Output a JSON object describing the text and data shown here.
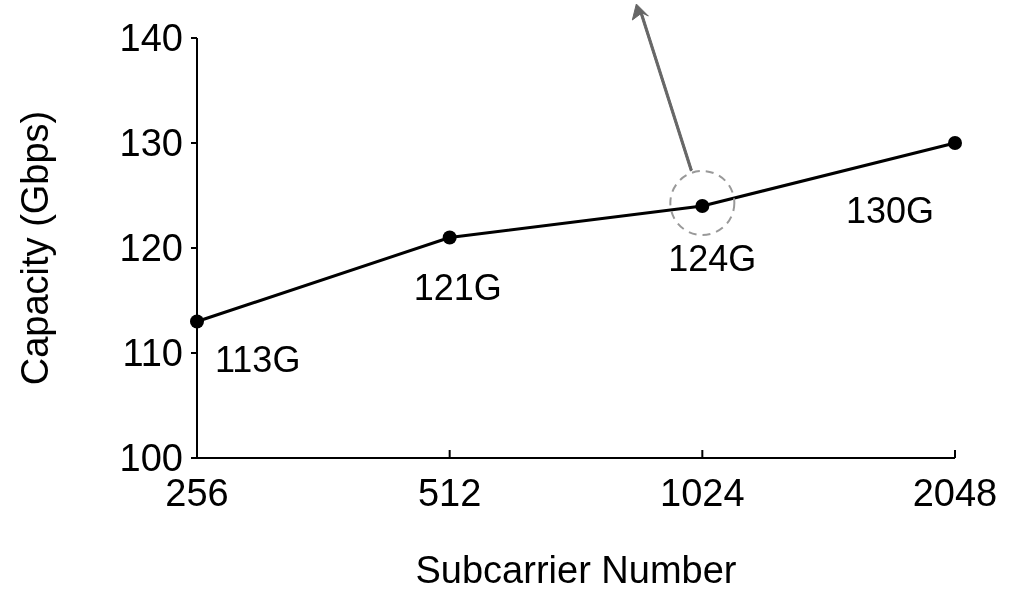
{
  "chart_data": {
    "type": "line",
    "xlabel": "Subcarrier Number",
    "ylabel": "Capacity (Gbps)",
    "categories": [
      "256",
      "512",
      "1024",
      "2048"
    ],
    "series": [
      {
        "color": "#000000",
        "values": [
          113,
          121,
          124,
          130
        ],
        "value_labels": [
          "113G",
          "121G",
          "124G",
          "130G"
        ]
      }
    ],
    "ylim": [
      100,
      140
    ],
    "yticks": [
      100,
      110,
      120,
      130,
      140
    ],
    "grid": false,
    "marker": "circle",
    "line_style": "solid"
  }
}
